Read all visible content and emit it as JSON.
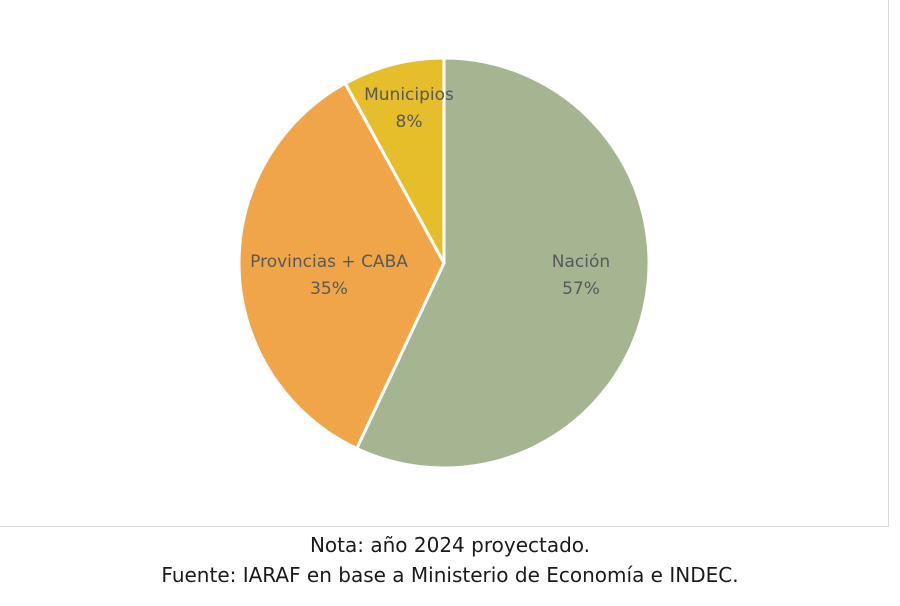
{
  "chart_data": {
    "type": "pie",
    "slices": [
      {
        "label": "Nación",
        "value": 57,
        "value_label": "57%",
        "color": "#a5b592"
      },
      {
        "label": "Provincias + CABA",
        "value": 35,
        "value_label": "35%",
        "color": "#f0a548"
      },
      {
        "label": "Municipios",
        "value": 8,
        "value_label": "8%",
        "color": "#e6bd2b"
      }
    ],
    "start": "12 o'clock",
    "direction": "clockwise",
    "slice_border_color": "#ffffff",
    "legend": "none",
    "label_color": "#595959"
  },
  "notes": {
    "nota": "Nota: año 2024 proyectado.",
    "fuente": "Fuente: IARAF en base a Ministerio de Economía e INDEC."
  }
}
